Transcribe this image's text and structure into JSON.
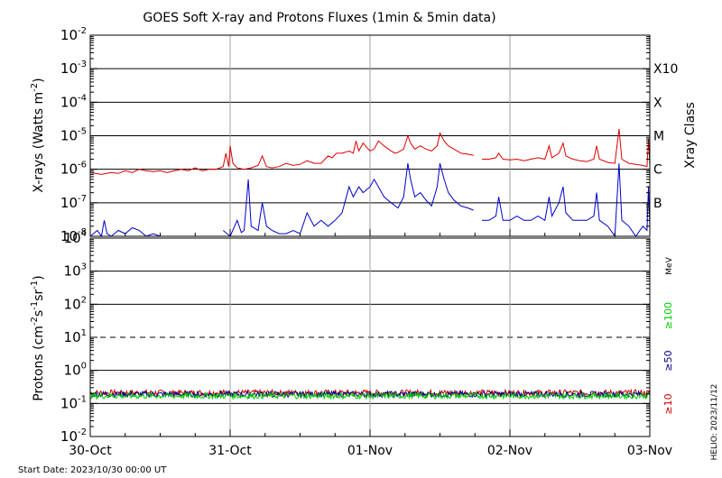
{
  "title": "GOES Soft X-ray and Protons Fluxes   (1min & 5min data)",
  "start_date": "Start Date: 2023/10/30 00:00 UT",
  "credit": "HELIO: 2023/11/12",
  "colors": {
    "xray_long": "#dd0000",
    "xray_short": "#0000cc",
    "proton_ge10": "#cc0000",
    "proton_ge50": "#00008b",
    "proton_ge100": "#00cc00",
    "grid": "#a0a0a0"
  },
  "chart_data": [
    {
      "type": "line",
      "title": "",
      "ylabel_text": "X-rays (Watts m",
      "ylabel_sup": "-2",
      "ylabel_close": ")",
      "yscale": "log",
      "ylim": [
        1e-08,
        0.01
      ],
      "y_ticks": [
        {
          "exp": -8,
          "base": "10",
          "sup": "-8"
        },
        {
          "exp": -7,
          "base": "10",
          "sup": "-7"
        },
        {
          "exp": -6,
          "base": "10",
          "sup": "-6"
        },
        {
          "exp": -5,
          "base": "10",
          "sup": "-5"
        },
        {
          "exp": -4,
          "base": "10",
          "sup": "-4"
        },
        {
          "exp": -3,
          "base": "10",
          "sup": "-3"
        },
        {
          "exp": -2,
          "base": "10",
          "sup": "-2"
        }
      ],
      "gridlines_y_exp": [
        -7,
        -6,
        -5,
        -4,
        -3
      ],
      "right_axis_title": "Xray Class",
      "right_labels": [
        {
          "exp": -7,
          "label": "B"
        },
        {
          "exp": -6,
          "label": "C"
        },
        {
          "exp": -5,
          "label": "M"
        },
        {
          "exp": -4,
          "label": "X"
        },
        {
          "exp": -3,
          "label": "X10"
        }
      ],
      "xlim_days": [
        0,
        4
      ],
      "series": [
        {
          "key": "long",
          "points": [
            [
              0.0,
              8e-07
            ],
            [
              0.08,
              7e-07
            ],
            [
              0.15,
              8e-07
            ],
            [
              0.2,
              7.5e-07
            ],
            [
              0.25,
              9e-07
            ],
            [
              0.3,
              8e-07
            ],
            [
              0.35,
              1e-06
            ],
            [
              0.4,
              9e-07
            ],
            [
              0.45,
              8.5e-07
            ],
            [
              0.5,
              9e-07
            ],
            [
              0.55,
              8e-07
            ],
            [
              0.6,
              9e-07
            ],
            [
              0.65,
              1e-06
            ],
            [
              0.7,
              9e-07
            ],
            [
              0.75,
              1.1e-06
            ],
            [
              0.8,
              9e-07
            ],
            [
              0.85,
              1e-06
            ],
            [
              0.9,
              1e-06
            ],
            [
              0.95,
              1.2e-06
            ],
            [
              0.97,
              3e-06
            ],
            [
              0.99,
              1.2e-06
            ],
            [
              1.0,
              5e-06
            ],
            [
              1.02,
              1.5e-06
            ],
            [
              1.05,
              1.1e-06
            ],
            [
              1.1,
              1e-06
            ],
            [
              1.15,
              1.1e-06
            ],
            [
              1.2,
              1.3e-06
            ],
            [
              1.23,
              2.5e-06
            ],
            [
              1.26,
              1.2e-06
            ],
            [
              1.3,
              1.1e-06
            ],
            [
              1.35,
              1.2e-06
            ],
            [
              1.4,
              1.5e-06
            ],
            [
              1.45,
              1.3e-06
            ],
            [
              1.5,
              1.4e-06
            ],
            [
              1.55,
              1.8e-06
            ],
            [
              1.6,
              1.5e-06
            ],
            [
              1.65,
              1.5e-06
            ],
            [
              1.7,
              2.5e-06
            ],
            [
              1.73,
              2.2e-06
            ],
            [
              1.76,
              3e-06
            ],
            [
              1.8,
              3e-06
            ],
            [
              1.85,
              3.5e-06
            ],
            [
              1.88,
              3e-06
            ],
            [
              1.9,
              7e-06
            ],
            [
              1.92,
              3.5e-06
            ],
            [
              1.95,
              6e-06
            ],
            [
              2.0,
              3.5e-06
            ],
            [
              2.03,
              4e-06
            ],
            [
              2.06,
              7e-06
            ],
            [
              2.1,
              5e-06
            ],
            [
              2.15,
              3.5e-06
            ],
            [
              2.18,
              3e-06
            ],
            [
              2.2,
              3.2e-06
            ],
            [
              2.24,
              4e-06
            ],
            [
              2.27,
              1e-05
            ],
            [
              2.29,
              6e-06
            ],
            [
              2.32,
              4e-06
            ],
            [
              2.36,
              5e-06
            ],
            [
              2.4,
              4e-06
            ],
            [
              2.44,
              3.5e-06
            ],
            [
              2.48,
              5e-06
            ],
            [
              2.5,
              1.2e-05
            ],
            [
              2.53,
              7e-06
            ],
            [
              2.56,
              5e-06
            ],
            [
              2.6,
              4e-06
            ],
            [
              2.65,
              3e-06
            ],
            [
              2.7,
              2.8e-06
            ],
            [
              2.74,
              2.6e-06
            ],
            [
              null,
              null
            ],
            [
              2.8,
              2e-06
            ],
            [
              2.85,
              2e-06
            ],
            [
              2.9,
              2.2e-06
            ],
            [
              2.92,
              3e-06
            ],
            [
              2.95,
              2e-06
            ],
            [
              3.0,
              1.9e-06
            ],
            [
              3.05,
              2e-06
            ],
            [
              3.1,
              1.8e-06
            ],
            [
              3.15,
              2e-06
            ],
            [
              3.2,
              2.2e-06
            ],
            [
              3.25,
              2e-06
            ],
            [
              3.28,
              5e-06
            ],
            [
              3.3,
              2.2e-06
            ],
            [
              3.35,
              3e-06
            ],
            [
              3.38,
              6e-06
            ],
            [
              3.4,
              2.5e-06
            ],
            [
              3.45,
              2e-06
            ],
            [
              3.5,
              1.8e-06
            ],
            [
              3.55,
              1.7e-06
            ],
            [
              3.6,
              2e-06
            ],
            [
              3.62,
              5e-06
            ],
            [
              3.64,
              2e-06
            ],
            [
              3.7,
              1.6e-06
            ],
            [
              3.75,
              1.5e-06
            ],
            [
              3.78,
              1.6e-05
            ],
            [
              3.8,
              2e-06
            ],
            [
              3.85,
              1.5e-06
            ],
            [
              3.9,
              1.4e-06
            ],
            [
              3.95,
              1.3e-06
            ],
            [
              3.98,
              1.2e-06
            ],
            [
              3.99,
              8e-06
            ],
            [
              4.0,
              1.3e-06
            ]
          ]
        },
        {
          "key": "short",
          "points": [
            [
              0.0,
              1e-08
            ],
            [
              0.05,
              1.5e-08
            ],
            [
              0.08,
              1e-08
            ],
            [
              0.1,
              3e-08
            ],
            [
              0.12,
              1.2e-08
            ],
            [
              0.15,
              1e-08
            ],
            [
              0.2,
              1.5e-08
            ],
            [
              0.25,
              1.2e-08
            ],
            [
              0.3,
              1.8e-08
            ],
            [
              0.35,
              1.5e-08
            ],
            [
              0.4,
              1e-08
            ],
            [
              0.45,
              1.2e-08
            ],
            [
              0.5,
              1e-08
            ],
            [
              null,
              null
            ],
            [
              0.95,
              1.5e-08
            ],
            [
              1.0,
              1e-08
            ],
            [
              1.05,
              3e-08
            ],
            [
              1.08,
              1.3e-08
            ],
            [
              1.1,
              1.5e-08
            ],
            [
              1.13,
              5e-07
            ],
            [
              1.15,
              2e-08
            ],
            [
              1.2,
              1.5e-08
            ],
            [
              1.23,
              1e-07
            ],
            [
              1.26,
              2e-08
            ],
            [
              1.3,
              1.5e-08
            ],
            [
              1.35,
              1.2e-08
            ],
            [
              1.4,
              1.2e-08
            ],
            [
              1.45,
              1.5e-08
            ],
            [
              1.5,
              1.2e-08
            ],
            [
              1.55,
              5e-08
            ],
            [
              1.6,
              2e-08
            ],
            [
              1.65,
              3e-08
            ],
            [
              1.7,
              2e-08
            ],
            [
              1.75,
              3e-08
            ],
            [
              1.8,
              5e-08
            ],
            [
              1.85,
              3e-07
            ],
            [
              1.88,
              1.5e-07
            ],
            [
              1.92,
              3e-07
            ],
            [
              1.95,
              2e-07
            ],
            [
              2.0,
              3e-07
            ],
            [
              2.03,
              5e-07
            ],
            [
              2.06,
              3e-07
            ],
            [
              2.1,
              1.5e-07
            ],
            [
              2.15,
              1e-07
            ],
            [
              2.2,
              7e-08
            ],
            [
              2.24,
              1.5e-07
            ],
            [
              2.27,
              1.5e-06
            ],
            [
              2.29,
              5e-07
            ],
            [
              2.32,
              1.5e-07
            ],
            [
              2.36,
              2e-07
            ],
            [
              2.4,
              1.2e-07
            ],
            [
              2.44,
              8e-08
            ],
            [
              2.48,
              3e-07
            ],
            [
              2.5,
              1.5e-06
            ],
            [
              2.53,
              5e-07
            ],
            [
              2.56,
              2e-07
            ],
            [
              2.6,
              1.2e-07
            ],
            [
              2.65,
              8e-08
            ],
            [
              2.7,
              7e-08
            ],
            [
              2.74,
              6e-08
            ],
            [
              null,
              null
            ],
            [
              2.8,
              3e-08
            ],
            [
              2.85,
              3e-08
            ],
            [
              2.9,
              4e-08
            ],
            [
              2.92,
              1.5e-07
            ],
            [
              2.95,
              3e-08
            ],
            [
              3.0,
              3e-08
            ],
            [
              3.05,
              4e-08
            ],
            [
              3.1,
              3e-08
            ],
            [
              3.15,
              3e-08
            ],
            [
              3.2,
              4e-08
            ],
            [
              3.25,
              3e-08
            ],
            [
              3.28,
              1.5e-07
            ],
            [
              3.3,
              4e-08
            ],
            [
              3.35,
              1e-07
            ],
            [
              3.38,
              3e-07
            ],
            [
              3.4,
              5e-08
            ],
            [
              3.45,
              3e-08
            ],
            [
              3.5,
              3e-08
            ],
            [
              3.55,
              3e-08
            ],
            [
              3.6,
              4e-08
            ],
            [
              3.62,
              2e-07
            ],
            [
              3.64,
              3e-08
            ],
            [
              3.7,
              2e-08
            ],
            [
              3.75,
              1e-08
            ],
            [
              3.78,
              1.5e-06
            ],
            [
              3.8,
              3e-08
            ],
            [
              3.85,
              2e-08
            ],
            [
              3.9,
              1e-08
            ],
            [
              3.95,
              2e-08
            ],
            [
              3.98,
              1.5e-08
            ],
            [
              3.99,
              3e-07
            ],
            [
              4.0,
              2e-08
            ]
          ]
        }
      ]
    },
    {
      "type": "line",
      "title": "",
      "ylabel_text": "Protons (cm",
      "ylabel_sup1": "-2",
      "ylabel_mid": "s",
      "ylabel_sup2": "-1",
      "ylabel_mid2": "sr",
      "ylabel_sup3": "-1",
      "ylabel_close": ")",
      "yscale": "log",
      "ylim": [
        0.01,
        10000.0
      ],
      "y_ticks": [
        {
          "exp": -2,
          "base": "10",
          "sup": "-2"
        },
        {
          "exp": -1,
          "base": "10",
          "sup": "-1"
        },
        {
          "exp": 0,
          "base": "10",
          "sup": "0"
        },
        {
          "exp": 1,
          "base": "10",
          "sup": "1"
        },
        {
          "exp": 2,
          "base": "10",
          "sup": "2"
        },
        {
          "exp": 3,
          "base": "10",
          "sup": "3"
        },
        {
          "exp": 4,
          "base": "10",
          "sup": "4"
        }
      ],
      "gridlines_y_exp": [
        -1,
        0,
        2,
        3
      ],
      "dashed_y_exp": [
        1
      ],
      "right_unit": "MeV",
      "legend": [
        {
          "label": "≥100",
          "color_key": "proton_ge100"
        },
        {
          "label": "≥50",
          "color_key": "proton_ge50"
        },
        {
          "label": "≥10",
          "color_key": "proton_ge10"
        }
      ],
      "x_tick_labels": [
        "30-Oct",
        "31-Oct",
        "01-Nov",
        "02-Nov",
        "03-Nov"
      ],
      "xlim_days": [
        0,
        4
      ],
      "series": [
        {
          "label": "≥100",
          "level": 0.17,
          "color_key": "proton_ge100"
        },
        {
          "label": "≥50",
          "level": 0.19,
          "color_key": "proton_ge50"
        },
        {
          "label": "≥10",
          "level": 0.21,
          "color_key": "proton_ge10"
        }
      ]
    }
  ]
}
